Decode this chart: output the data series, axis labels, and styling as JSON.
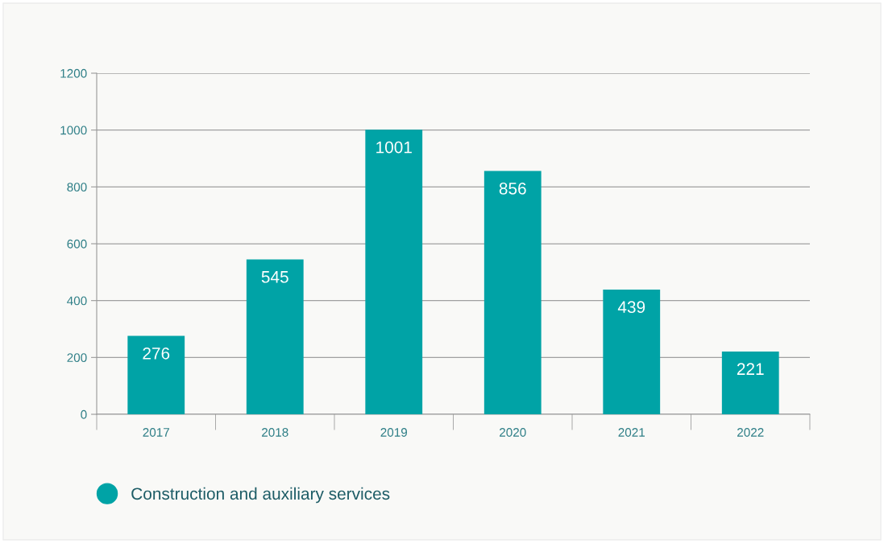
{
  "chart_data": {
    "type": "bar",
    "categories": [
      "2017",
      "2018",
      "2019",
      "2020",
      "2021",
      "2022"
    ],
    "series": [
      {
        "name": "Construction and auxiliary services",
        "color": "#00a3a6",
        "values": [
          276,
          545,
          1001,
          856,
          439,
          221
        ]
      }
    ],
    "ylim": [
      0,
      1200
    ],
    "yticks": [
      0,
      200,
      400,
      600,
      800,
      1000,
      1200
    ],
    "grid": "y",
    "legend": "bottom left",
    "data_labels": true
  }
}
